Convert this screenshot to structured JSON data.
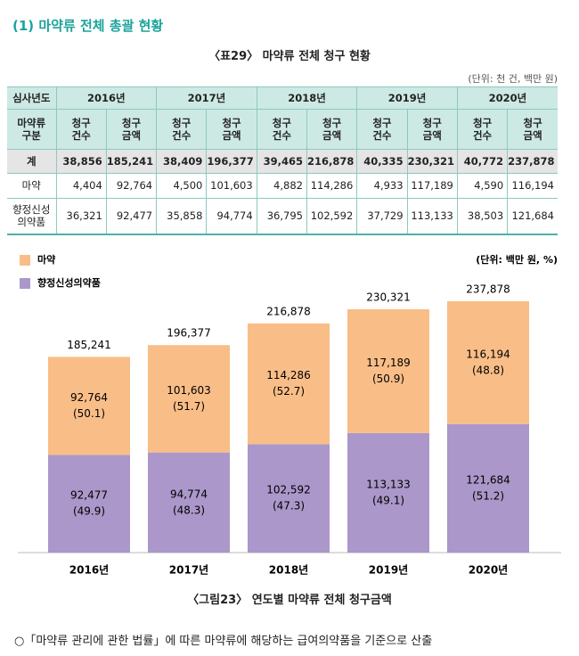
{
  "section_title": "(1) 마약류 전체 총괄 현황",
  "table_caption": "〈표29〉 마약류 전체 청구 현황",
  "table_unit": "(단위: 천 건, 백만 원)",
  "table": {
    "header_top": [
      "심사년도",
      "2016년",
      "2017년",
      "2018년",
      "2019년",
      "2020년"
    ],
    "header_sub": [
      "마약류\n구분",
      "청구\n건수",
      "청구\n금액",
      "청구\n건수",
      "청구\n금액",
      "청구\n건수",
      "청구\n금액",
      "청구\n건수",
      "청구\n금액",
      "청구\n건수",
      "청구\n금액"
    ],
    "rows": [
      [
        "계",
        "38,856",
        "185,241",
        "38,409",
        "196,377",
        "39,465",
        "216,878",
        "40,335",
        "230,321",
        "40,772",
        "237,878"
      ],
      [
        "마약",
        "4,404",
        "92,764",
        "4,500",
        "101,603",
        "4,882",
        "114,286",
        "4,933",
        "117,189",
        "4,590",
        "116,194"
      ],
      [
        "향정신성\n의약품",
        "36,321",
        "92,477",
        "35,858",
        "94,774",
        "36,795",
        "102,592",
        "37,729",
        "113,133",
        "38,503",
        "121,684"
      ]
    ]
  },
  "chart_data": {
    "type": "stacked-bar",
    "unit": "(단위: 백만 원, %)",
    "categories": [
      "2016년",
      "2017년",
      "2018년",
      "2019년",
      "2020년"
    ],
    "series": [
      {
        "name": "향정신성의약품",
        "color": "#ab97c9",
        "values": [
          92477,
          94774,
          102592,
          113133,
          121684
        ],
        "value_labels": [
          "92,477",
          "94,774",
          "102,592",
          "113,133",
          "121,684"
        ],
        "share_labels": [
          "(49.9)",
          "(48.3)",
          "(47.3)",
          "(49.1)",
          "(51.2)"
        ]
      },
      {
        "name": "마약",
        "color": "#f9bd87",
        "values": [
          92764,
          101603,
          114286,
          117189,
          116194
        ],
        "value_labels": [
          "92,764",
          "101,603",
          "114,286",
          "117,189",
          "116,194"
        ],
        "share_labels": [
          "(50.1)",
          "(51.7)",
          "(52.7)",
          "(50.9)",
          "(48.8)"
        ]
      }
    ],
    "totals": [
      185241,
      196377,
      216878,
      230321,
      237878
    ],
    "total_labels": [
      "185,241",
      "196,377",
      "216,878",
      "230,321",
      "237,878"
    ],
    "caption": "〈그림23〉 연도별 마약류 전체 청구금액"
  },
  "footnote": "○「마약류 관리에 관한 법률」에 따른 마약류에 해당하는 급여의약품을 기준으로 산출"
}
